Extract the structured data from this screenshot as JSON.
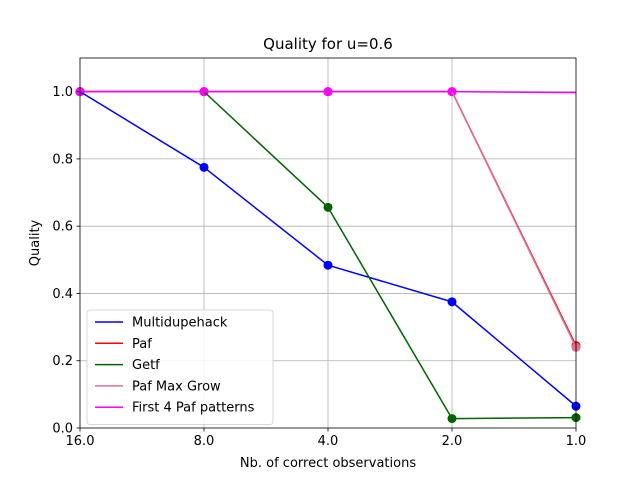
{
  "chart_data": {
    "type": "line",
    "title": "Quality for u=0.6",
    "xlabel": "Nb. of correct observations",
    "ylabel": "Quality",
    "categories": [
      "16.0",
      "8.0",
      "4.0",
      "2.0",
      "1.0"
    ],
    "ylim": [
      0.0,
      1.1
    ],
    "yticks": [
      0.0,
      0.2,
      0.4,
      0.6,
      0.8,
      1.0
    ],
    "ytick_labels": [
      "0.0",
      "0.2",
      "0.4",
      "0.6",
      "0.8",
      "1.0"
    ],
    "grid": true,
    "legend_position": "lower-left",
    "series": [
      {
        "name": "Multidupehack",
        "color": "#0000ff",
        "values": [
          1.0,
          0.775,
          0.484,
          0.375,
          0.065
        ],
        "markers": true
      },
      {
        "name": "Paf",
        "color": "#ff0000",
        "values": [
          1.0,
          1.0,
          1.0,
          1.0,
          0.245
        ],
        "markers": true
      },
      {
        "name": "Getf",
        "color": "#006400",
        "values": [
          1.0,
          1.0,
          0.656,
          0.028,
          0.031
        ],
        "markers": true
      },
      {
        "name": "Paf Max Grow",
        "color": "#db7093",
        "values": [
          1.0,
          1.0,
          1.0,
          1.0,
          0.24
        ],
        "markers": true
      },
      {
        "name": "First 4 Paf patterns",
        "color": "#ff00ff",
        "values": [
          1.0,
          1.0,
          1.0,
          1.0,
          0.997
        ],
        "markers": true,
        "last_marker": false
      }
    ]
  }
}
